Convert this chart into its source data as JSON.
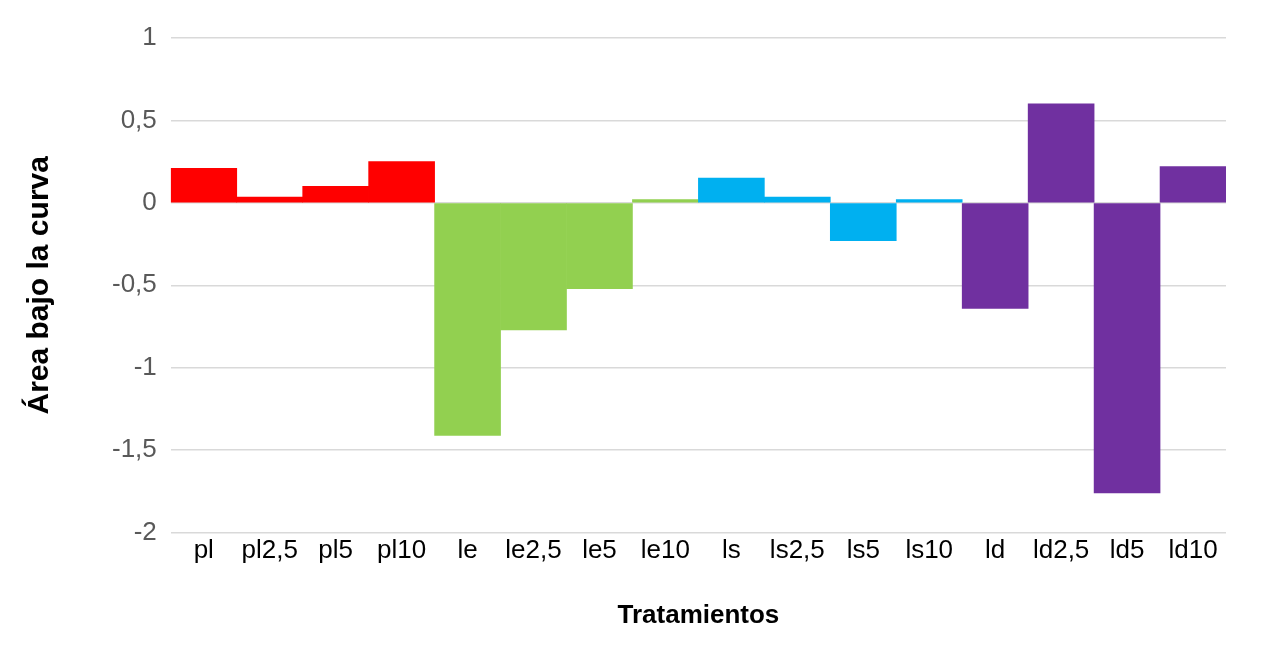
{
  "chart_data": {
    "type": "bar",
    "xlabel": "Tratamientos",
    "ylabel": "Área bajo la curva",
    "categories": [
      "pl",
      "pl2,5",
      "pl5",
      "pl10",
      "le",
      "le2,5",
      "le5",
      "le10",
      "ls",
      "ls2,5",
      "ls5",
      "ls10",
      "ld",
      "ld2,5",
      "ld5",
      "ld10"
    ],
    "values": [
      0.21,
      0.035,
      0.1,
      0.25,
      -1.41,
      -0.77,
      -0.52,
      0.02,
      0.15,
      0.035,
      -0.23,
      0.02,
      -0.64,
      0.6,
      -1.76,
      0.22
    ],
    "colors": [
      "#ff0000",
      "#ff0000",
      "#ff0000",
      "#ff0000",
      "#92d050",
      "#92d050",
      "#92d050",
      "#92d050",
      "#00b0f0",
      "#00b0f0",
      "#00b0f0",
      "#00b0f0",
      "#7030a0",
      "#7030a0",
      "#7030a0",
      "#7030a0"
    ],
    "ylim": [
      -2,
      1
    ],
    "yticks": [
      -2,
      {
        "value": -1.5,
        "label": "-1,5"
      },
      -1,
      {
        "value": -0.5,
        "label": "-0,5"
      },
      0,
      {
        "value": 0.5,
        "label": "0,5"
      },
      1
    ],
    "grid": "y",
    "legend": false
  }
}
